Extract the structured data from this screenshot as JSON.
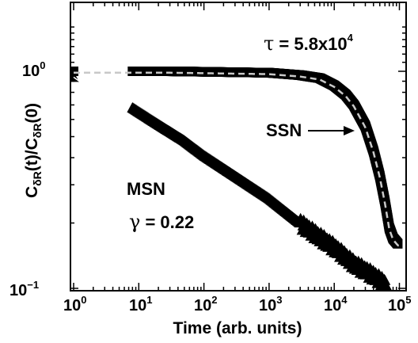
{
  "chart_data": {
    "type": "scatter",
    "xscale": "log",
    "yscale": "log",
    "xlim": [
      0.9,
      100000
    ],
    "ylim": [
      0.1,
      1.6
    ],
    "xlabel": "Time (arb. units)",
    "ylabel": "C_δR(t)/C_δR(0)",
    "x_ticks": [
      "10^0",
      "10^1",
      "10^2",
      "10^3",
      "10^4",
      "10^5"
    ],
    "y_ticks": [
      "10^−1",
      "10^0"
    ],
    "series": [
      {
        "name": "SSN",
        "marker": "square",
        "points": [
          [
            1,
            1.0
          ],
          [
            8,
            1.0
          ],
          [
            13,
            1.0
          ],
          [
            30,
            1.0
          ],
          [
            100,
            0.995
          ],
          [
            300,
            0.99
          ],
          [
            1000,
            0.985
          ],
          [
            3000,
            0.96
          ],
          [
            6000,
            0.93
          ],
          [
            10000,
            0.86
          ],
          [
            15000,
            0.78
          ],
          [
            20000,
            0.7
          ],
          [
            30000,
            0.56
          ],
          [
            40000,
            0.43
          ],
          [
            50000,
            0.33
          ],
          [
            60000,
            0.25
          ],
          [
            70000,
            0.19
          ],
          [
            80000,
            0.17
          ],
          [
            95000,
            0.16
          ]
        ]
      },
      {
        "name": "MSN",
        "marker": "triangle",
        "points": [
          [
            1,
            0.94
          ],
          [
            8,
            0.68
          ],
          [
            20,
            0.57
          ],
          [
            50,
            0.48
          ],
          [
            100,
            0.41
          ],
          [
            300,
            0.33
          ],
          [
            1000,
            0.26
          ],
          [
            3000,
            0.2
          ],
          [
            10000,
            0.155
          ],
          [
            20000,
            0.13
          ],
          [
            40000,
            0.115
          ],
          [
            60000,
            0.105
          ]
        ]
      }
    ],
    "fits": [
      {
        "type": "stretched-exponential",
        "series": "SSN",
        "tau": 58000,
        "label": "τ = 5.8x10^4"
      },
      {
        "type": "power-law",
        "series": "MSN",
        "gamma": 0.22,
        "label": "γ = 0.22"
      }
    ],
    "annotations": {
      "tau_symbol": "τ",
      "tau_text": " = 5.8x10",
      "tau_exp": "4",
      "ssn": "SSN",
      "msn": "MSN",
      "gamma_symbol": "γ",
      "gamma_text": " = 0.22"
    },
    "ylabel_parts": {
      "c1": "C",
      "s1": "δR",
      "mid": "(t)/C",
      "s2": "δR",
      "end": "(0)"
    },
    "colors": {
      "markers": "#000000",
      "fit_line": "#c8c8c8",
      "frame": "#000000"
    }
  }
}
